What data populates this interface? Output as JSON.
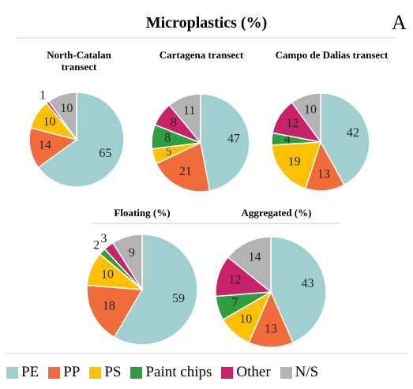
{
  "title": "Microplastics (%)",
  "panel_label": "A",
  "legend": {
    "categories": [
      "PE",
      "PP",
      "PS",
      "Paint chips",
      "Other",
      "N/S"
    ],
    "colors": [
      "#9fd0cf",
      "#f26b3a",
      "#ffc000",
      "#2e9e3e",
      "#c8236a",
      "#b3b3b3"
    ]
  },
  "chart_data": [
    {
      "type": "pie",
      "title": "North-Catalan transect",
      "values": [
        65,
        14,
        10,
        null,
        1,
        10
      ]
    },
    {
      "type": "pie",
      "title": "Cartagena transect",
      "values": [
        47,
        21,
        5,
        8,
        8,
        11
      ]
    },
    {
      "type": "pie",
      "title": "Campo de Dalias transect",
      "values": [
        42,
        13,
        19,
        4,
        12,
        10
      ]
    },
    {
      "type": "pie",
      "title": "Floating (%)",
      "values": [
        59,
        18,
        10,
        2,
        3,
        9
      ]
    },
    {
      "type": "pie",
      "title": "Aggregated (%)",
      "values": [
        43,
        13,
        10,
        7,
        12,
        14
      ]
    }
  ]
}
